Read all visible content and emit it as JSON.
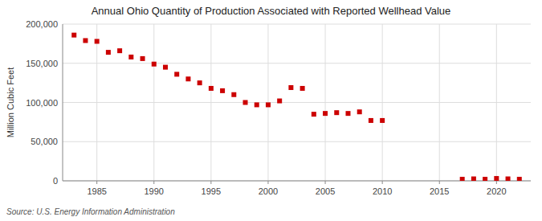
{
  "chart_data": {
    "type": "scatter",
    "title": "Annual Ohio Quantity of Production Associated with Reported Wellhead Value",
    "ylabel": "Million Cubic Feet",
    "annotation": "Source: U.S. Energy Information Administration",
    "color": "#cc0000",
    "marker": "square",
    "grid": true,
    "x": [
      1983,
      1984,
      1985,
      1986,
      1987,
      1988,
      1989,
      1990,
      1991,
      1992,
      1993,
      1994,
      1995,
      1996,
      1997,
      1998,
      1999,
      2000,
      2001,
      2002,
      2003,
      2004,
      2005,
      2006,
      2007,
      2008,
      2009,
      2010,
      2017,
      2018,
      2019,
      2020,
      2021,
      2022
    ],
    "values": [
      186000,
      179000,
      178000,
      164000,
      166000,
      158000,
      156000,
      149000,
      145000,
      136000,
      130000,
      125000,
      118000,
      115000,
      110000,
      100000,
      97000,
      97000,
      102000,
      119000,
      118000,
      85000,
      86000,
      87000,
      86000,
      88000,
      77000,
      77000,
      2000,
      2500,
      2000,
      3000,
      2500,
      2000
    ],
    "xlim": [
      1982,
      2023
    ],
    "xticks": [
      1985,
      1990,
      1995,
      2000,
      2005,
      2010,
      2015,
      2020
    ],
    "ylim": [
      0,
      200000
    ],
    "yticks": [
      0,
      {
        "value": 50000,
        "label": "50,000"
      },
      {
        "value": 100000,
        "label": "100,000"
      },
      {
        "value": 150000,
        "label": "150,000"
      },
      {
        "value": 200000,
        "label": "200,000"
      }
    ]
  }
}
